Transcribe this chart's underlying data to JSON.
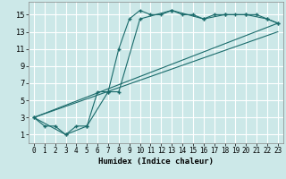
{
  "xlabel": "Humidex (Indice chaleur)",
  "ylabel": "",
  "bg_color": "#cce8e8",
  "line_color": "#1a6b6b",
  "grid_color": "#ffffff",
  "xlim": [
    -0.5,
    23.5
  ],
  "ylim": [
    0,
    16.5
  ],
  "xticks": [
    0,
    1,
    2,
    3,
    4,
    5,
    6,
    7,
    8,
    9,
    10,
    11,
    12,
    13,
    14,
    15,
    16,
    17,
    18,
    19,
    20,
    21,
    22,
    23
  ],
  "yticks": [
    1,
    3,
    5,
    7,
    9,
    11,
    13,
    15
  ],
  "series1_x": [
    0,
    1,
    2,
    3,
    4,
    5,
    6,
    7,
    8,
    9,
    10,
    11,
    12,
    13,
    14,
    15,
    16,
    17,
    18,
    19,
    20,
    21,
    22,
    23
  ],
  "series1_y": [
    3,
    2,
    2,
    1,
    2,
    2,
    6,
    6,
    11,
    14.5,
    15.5,
    15,
    15,
    15.5,
    15,
    15,
    14.5,
    15,
    15,
    15,
    15,
    15,
    14.5,
    14
  ],
  "series2_x": [
    0,
    3,
    5,
    7,
    8,
    10,
    13,
    16,
    18,
    20,
    22,
    23
  ],
  "series2_y": [
    3,
    1,
    2,
    6,
    6,
    14.5,
    15.5,
    14.5,
    15,
    15,
    14.5,
    14
  ],
  "series3_x": [
    0,
    23
  ],
  "series3_y": [
    3,
    14
  ],
  "series4_x": [
    0,
    23
  ],
  "series4_y": [
    3,
    13
  ],
  "xlabel_fontsize": 6.5,
  "xlabel_fontweight": "bold",
  "tick_fontsize": 5.5
}
